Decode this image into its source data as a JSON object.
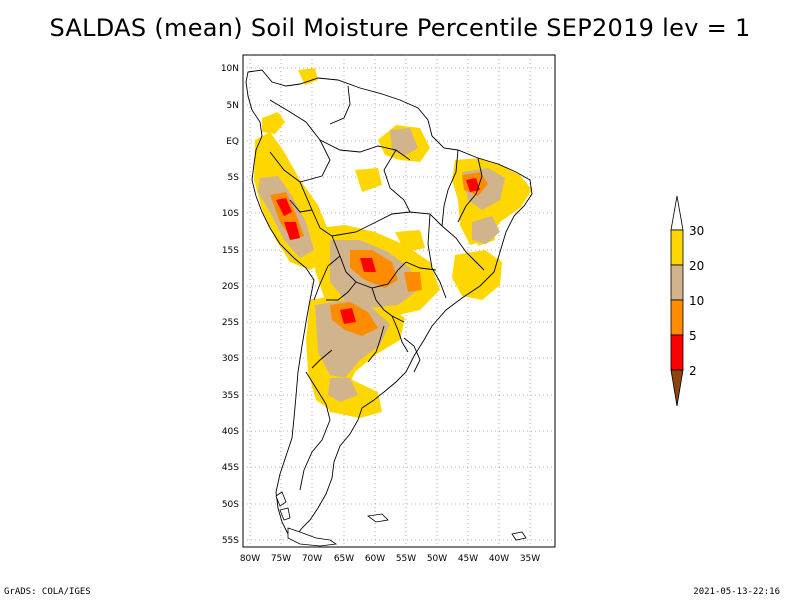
{
  "title": "SALDAS (mean) Soil Moisture Percentile SEP2019 lev = 1",
  "footer": {
    "credit": "GrADS: COLA/IGES",
    "timestamp": "2021-05-13-22:16"
  },
  "axes": {
    "lat_labels": [
      "10N",
      "5N",
      "EQ",
      "5S",
      "10S",
      "15S",
      "20S",
      "25S",
      "30S",
      "35S",
      "40S",
      "45S",
      "50S",
      "55S"
    ],
    "lon_labels": [
      "80W",
      "75W",
      "70W",
      "65W",
      "60W",
      "55W",
      "50W",
      "45W",
      "40W",
      "35W"
    ]
  },
  "legend": {
    "labels": [
      "30",
      "20",
      "10",
      "5",
      "2"
    ],
    "colors": {
      "above30": "#ffffff",
      "c20_30": "#ffd700",
      "c10_20": "#d2b48c",
      "c5_10": "#ff8c00",
      "c2_5": "#ff0000",
      "below2": "#8b4513"
    }
  },
  "colors": {
    "coast": "#000000",
    "grid": "#9a9a9a"
  }
}
